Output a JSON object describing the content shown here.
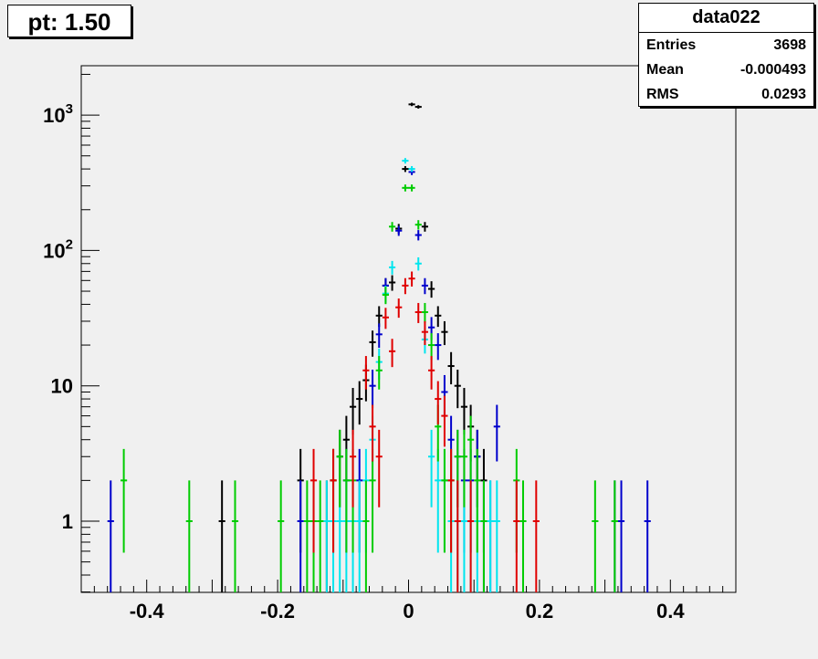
{
  "title": "pt: 1.50",
  "stats": {
    "name": "data022",
    "rows": [
      {
        "label": "Entries",
        "value": "3698"
      },
      {
        "label": "Mean",
        "value": "-0.000493"
      },
      {
        "label": "RMS",
        "value": "0.0293"
      }
    ]
  },
  "colors": {
    "black": "#000000",
    "blue": "#0000cc",
    "cyan": "#00e5ee",
    "green": "#00cc00",
    "red": "#e00000"
  },
  "chart_data": {
    "type": "scatter",
    "title": "pt: 1.50",
    "xlabel": "",
    "ylabel": "",
    "xlim": [
      -0.5,
      0.5
    ],
    "ylim": [
      0.3,
      2200
    ],
    "y_scale": "log",
    "grid": false,
    "x_ticks": [
      "-0.4",
      "-0.2",
      "0",
      "0.2",
      "0.4"
    ],
    "y_ticks": [
      "1",
      "10",
      "10^2",
      "10^3"
    ],
    "bin_width": 0.01,
    "error_bars": "poisson",
    "series": [
      {
        "color": "#000000",
        "points": [
          [
            -0.285,
            1
          ],
          [
            -0.165,
            2
          ],
          [
            -0.125,
            1
          ],
          [
            -0.115,
            2
          ],
          [
            -0.105,
            3
          ],
          [
            -0.095,
            4
          ],
          [
            -0.085,
            7
          ],
          [
            -0.075,
            8
          ],
          [
            -0.065,
            11
          ],
          [
            -0.055,
            21
          ],
          [
            -0.045,
            33
          ],
          [
            -0.035,
            55
          ],
          [
            -0.025,
            58
          ],
          [
            -0.015,
            145
          ],
          [
            -0.005,
            400
          ],
          [
            0.005,
            1200
          ],
          [
            0.015,
            1150
          ],
          [
            0.025,
            150
          ],
          [
            0.035,
            52
          ],
          [
            0.045,
            33
          ],
          [
            0.055,
            25
          ],
          [
            0.065,
            14
          ],
          [
            0.075,
            10
          ],
          [
            0.085,
            7
          ],
          [
            0.095,
            5
          ],
          [
            0.105,
            3
          ],
          [
            0.115,
            2
          ]
        ]
      },
      {
        "color": "#0000cc",
        "points": [
          [
            -0.455,
            1
          ],
          [
            -0.165,
            1
          ],
          [
            -0.095,
            2
          ],
          [
            -0.075,
            2
          ],
          [
            -0.055,
            10
          ],
          [
            -0.045,
            24
          ],
          [
            -0.035,
            55
          ],
          [
            -0.015,
            140
          ],
          [
            0.005,
            380
          ],
          [
            0.015,
            130
          ],
          [
            0.025,
            55
          ],
          [
            0.035,
            27
          ],
          [
            0.045,
            20
          ],
          [
            0.055,
            9
          ],
          [
            0.065,
            4
          ],
          [
            0.075,
            3
          ],
          [
            0.085,
            2
          ],
          [
            0.095,
            2
          ],
          [
            0.105,
            3
          ],
          [
            0.115,
            1
          ],
          [
            0.125,
            1
          ],
          [
            0.135,
            5
          ],
          [
            0.315,
            1
          ],
          [
            0.325,
            1
          ],
          [
            0.365,
            1
          ]
        ]
      },
      {
        "color": "#00e5ee",
        "points": [
          [
            -0.125,
            1
          ],
          [
            -0.115,
            1
          ],
          [
            -0.105,
            1
          ],
          [
            -0.095,
            1
          ],
          [
            -0.085,
            1
          ],
          [
            -0.075,
            1
          ],
          [
            -0.065,
            2
          ],
          [
            -0.055,
            4
          ],
          [
            -0.045,
            15
          ],
          [
            -0.035,
            48
          ],
          [
            -0.025,
            75
          ],
          [
            -0.005,
            460
          ],
          [
            0.005,
            400
          ],
          [
            0.015,
            80
          ],
          [
            0.025,
            22
          ],
          [
            0.035,
            3
          ],
          [
            0.045,
            2
          ],
          [
            0.055,
            2
          ],
          [
            0.065,
            1
          ],
          [
            0.075,
            1
          ],
          [
            0.085,
            1
          ],
          [
            0.095,
            1
          ],
          [
            0.105,
            1
          ],
          [
            0.125,
            1
          ],
          [
            0.135,
            1
          ]
        ]
      },
      {
        "color": "#00cc00",
        "points": [
          [
            -0.435,
            2
          ],
          [
            -0.335,
            1
          ],
          [
            -0.265,
            1
          ],
          [
            -0.195,
            1
          ],
          [
            -0.155,
            1
          ],
          [
            -0.145,
            1
          ],
          [
            -0.135,
            1
          ],
          [
            -0.115,
            2
          ],
          [
            -0.105,
            3
          ],
          [
            -0.095,
            2
          ],
          [
            -0.085,
            2
          ],
          [
            -0.065,
            1
          ],
          [
            -0.055,
            2
          ],
          [
            -0.045,
            13
          ],
          [
            -0.035,
            47
          ],
          [
            -0.025,
            150
          ],
          [
            -0.005,
            290
          ],
          [
            0.005,
            290
          ],
          [
            0.015,
            155
          ],
          [
            0.025,
            35
          ],
          [
            0.035,
            20
          ],
          [
            0.045,
            5
          ],
          [
            0.055,
            2
          ],
          [
            0.065,
            2
          ],
          [
            0.075,
            3
          ],
          [
            0.085,
            3
          ],
          [
            0.095,
            4
          ],
          [
            0.105,
            2
          ],
          [
            0.115,
            1
          ],
          [
            0.165,
            2
          ],
          [
            0.175,
            1
          ],
          [
            0.285,
            1
          ],
          [
            0.315,
            1
          ]
        ]
      },
      {
        "color": "#e00000",
        "points": [
          [
            -0.145,
            2
          ],
          [
            -0.115,
            2
          ],
          [
            -0.085,
            3
          ],
          [
            -0.065,
            13
          ],
          [
            -0.055,
            5
          ],
          [
            -0.045,
            3
          ],
          [
            -0.035,
            32
          ],
          [
            -0.025,
            18
          ],
          [
            -0.015,
            38
          ],
          [
            -0.005,
            55
          ],
          [
            0.005,
            62
          ],
          [
            0.015,
            35
          ],
          [
            0.025,
            25
          ],
          [
            0.035,
            13
          ],
          [
            0.045,
            8
          ],
          [
            0.055,
            6
          ],
          [
            0.065,
            2
          ],
          [
            0.075,
            1
          ],
          [
            0.095,
            1
          ],
          [
            0.165,
            1
          ],
          [
            0.195,
            1
          ]
        ]
      }
    ]
  }
}
